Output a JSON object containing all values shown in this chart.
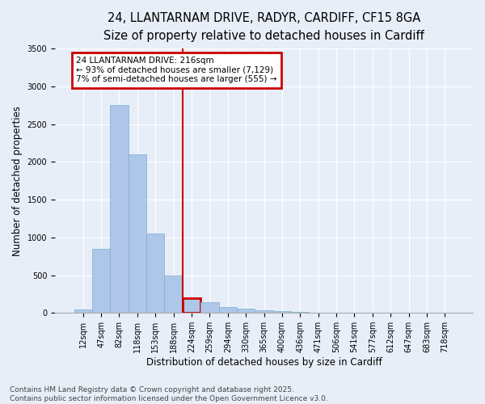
{
  "title_line1": "24, LLANTARNAM DRIVE, RADYR, CARDIFF, CF15 8GA",
  "title_line2": "Size of property relative to detached houses in Cardiff",
  "xlabel": "Distribution of detached houses by size in Cardiff",
  "ylabel": "Number of detached properties",
  "bar_labels": [
    "12sqm",
    "47sqm",
    "82sqm",
    "118sqm",
    "153sqm",
    "188sqm",
    "224sqm",
    "259sqm",
    "294sqm",
    "330sqm",
    "365sqm",
    "400sqm",
    "436sqm",
    "471sqm",
    "506sqm",
    "541sqm",
    "577sqm",
    "612sqm",
    "647sqm",
    "683sqm",
    "718sqm"
  ],
  "bar_heights": [
    50,
    850,
    2750,
    2100,
    1050,
    490,
    200,
    140,
    80,
    60,
    35,
    20,
    10,
    5,
    3,
    2,
    1,
    1,
    0,
    0,
    0
  ],
  "bar_color": "#aec6e8",
  "bar_edge_color": "#7aafd4",
  "highlight_bin": 6,
  "highlight_color": "#cc0000",
  "vline_bin": 6,
  "annotation_text": "24 LLANTARNAM DRIVE: 216sqm\n← 93% of detached houses are smaller (7,129)\n7% of semi-detached houses are larger (555) →",
  "annotation_box_color": "#cc0000",
  "ylim": [
    0,
    3500
  ],
  "yticks": [
    0,
    500,
    1000,
    1500,
    2000,
    2500,
    3000,
    3500
  ],
  "background_color": "#e8eef8",
  "grid_color": "#ffffff",
  "footer_text": "Contains HM Land Registry data © Crown copyright and database right 2025.\nContains public sector information licensed under the Open Government Licence v3.0.",
  "title_fontsize": 10.5,
  "subtitle_fontsize": 9.5,
  "axis_label_fontsize": 8.5,
  "tick_fontsize": 7,
  "annotation_fontsize": 7.5,
  "footer_fontsize": 6.5
}
